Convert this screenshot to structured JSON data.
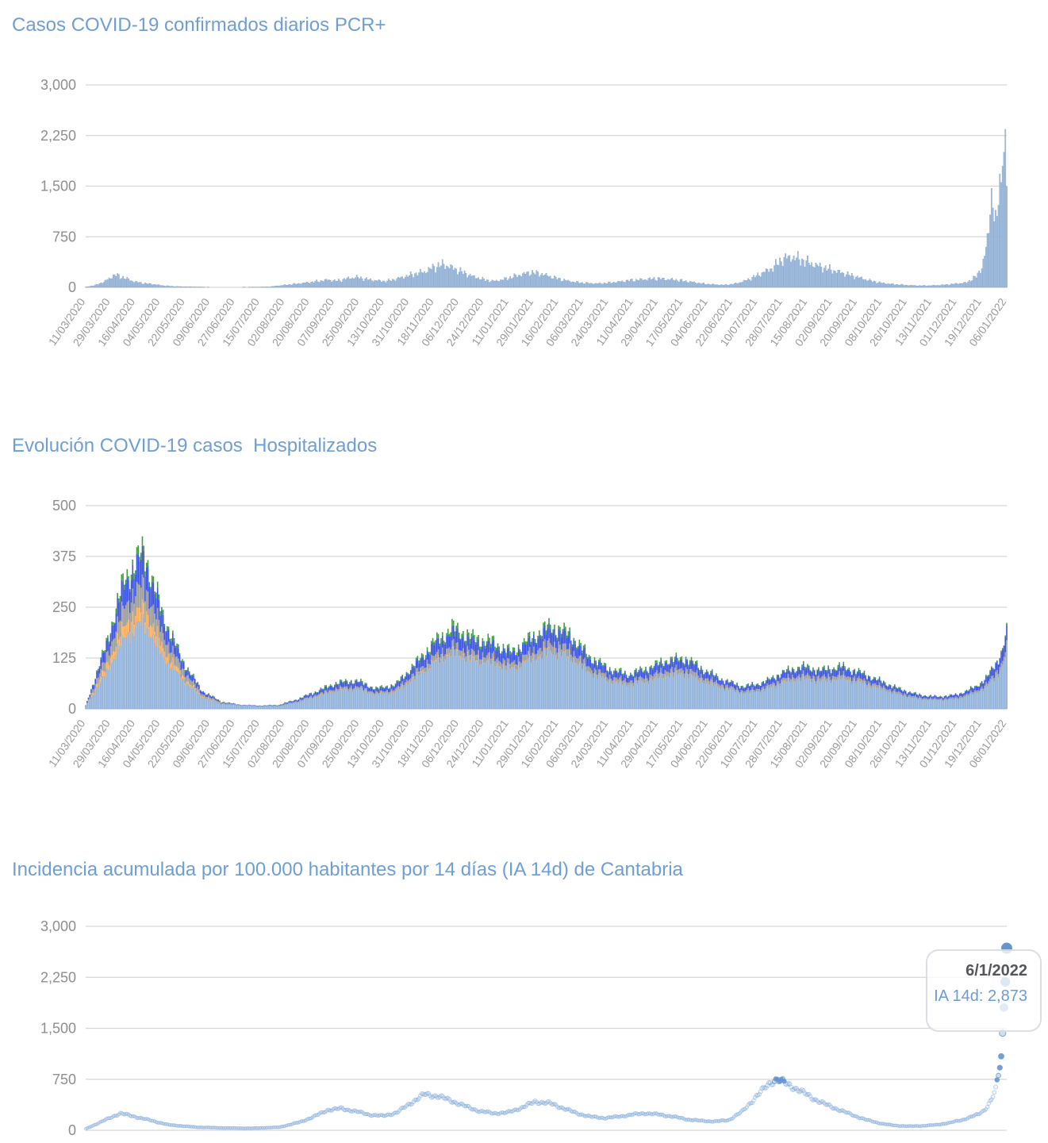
{
  "page": {
    "background": "#ffffff"
  },
  "colors": {
    "title_blue": "#6e9ed6",
    "grid_gray": "#d6d6d6",
    "y_label_gray": "#8e8e8e",
    "x_label_gray": "#9a9a9a",
    "bar_fill": "#a5bfdf",
    "bar_stroke": "#7fa2cb",
    "dot_blue": "#6d9bd3",
    "dot_dark": "#5e8fcb",
    "stack_lightblue": "#afc9e6",
    "stack_lightblue_stroke": "#6e94c9",
    "stack_orange": "#fbaf5d",
    "stack_gray": "#9d9d9d",
    "stack_blue": "#3b53e3",
    "stack_green": "#3ba13b"
  },
  "x_axis_dates": [
    "11/03/2020",
    "29/03/2020",
    "16/04/2020",
    "04/05/2020",
    "22/05/2020",
    "09/06/2020",
    "27/06/2020",
    "15/07/2020",
    "02/08/2020",
    "20/08/2020",
    "07/09/2020",
    "25/09/2020",
    "13/10/2020",
    "31/10/2020",
    "18/11/2020",
    "06/12/2020",
    "24/12/2020",
    "11/01/2021",
    "29/01/2021",
    "16/02/2021",
    "06/03/2021",
    "24/03/2021",
    "11/04/2021",
    "29/04/2021",
    "17/05/2021",
    "04/06/2021",
    "22/06/2021",
    "10/07/2021",
    "28/07/2021",
    "15/08/2021",
    "02/09/2021",
    "20/09/2021",
    "08/10/2021",
    "26/10/2021",
    "13/11/2021",
    "01/12/2021",
    "19/12/2021",
    "06/01/2022"
  ],
  "chart_data": [
    {
      "type": "bar",
      "title": "Casos COVID-19 confirmados diarios PCR+",
      "ylabel": "",
      "y_max": 3000,
      "y_ticks": [
        "3,000",
        "2,250",
        "1,500",
        "750",
        "0"
      ],
      "x_start_date": "11/03/2020",
      "x_end_date": "06/01/2022",
      "x_tick_interval_days": 18,
      "x_tick_labels": [
        "11/03/2020",
        "29/03/2020",
        "16/04/2020",
        "04/05/2020",
        "22/05/2020",
        "09/06/2020",
        "27/06/2020",
        "15/07/2020",
        "02/08/2020",
        "20/08/2020",
        "07/09/2020",
        "25/09/2020",
        "13/10/2020",
        "31/10/2020",
        "18/11/2020",
        "06/12/2020",
        "24/12/2020",
        "11/01/2021",
        "29/01/2021",
        "16/02/2021",
        "06/03/2021",
        "24/03/2021",
        "11/04/2021",
        "29/04/2021",
        "17/05/2021",
        "04/06/2021",
        "22/06/2021",
        "10/07/2021",
        "28/07/2021",
        "15/08/2021",
        "02/09/2021",
        "20/09/2021",
        "08/10/2021",
        "26/10/2021",
        "13/11/2021",
        "01/12/2021",
        "19/12/2021",
        "06/01/2022"
      ],
      "grid": true,
      "points_day_value": [
        [
          0,
          5
        ],
        [
          7,
          30
        ],
        [
          14,
          90
        ],
        [
          21,
          185
        ],
        [
          28,
          140
        ],
        [
          35,
          85
        ],
        [
          42,
          60
        ],
        [
          49,
          45
        ],
        [
          56,
          25
        ],
        [
          63,
          15
        ],
        [
          70,
          10
        ],
        [
          77,
          8
        ],
        [
          84,
          5
        ],
        [
          91,
          3
        ],
        [
          98,
          2
        ],
        [
          105,
          2
        ],
        [
          112,
          3
        ],
        [
          119,
          4
        ],
        [
          126,
          5
        ],
        [
          133,
          8
        ],
        [
          140,
          25
        ],
        [
          147,
          40
        ],
        [
          154,
          55
        ],
        [
          161,
          70
        ],
        [
          168,
          90
        ],
        [
          175,
          110
        ],
        [
          182,
          95
        ],
        [
          189,
          130
        ],
        [
          196,
          150
        ],
        [
          203,
          120
        ],
        [
          210,
          100
        ],
        [
          217,
          90
        ],
        [
          224,
          120
        ],
        [
          231,
          160
        ],
        [
          238,
          200
        ],
        [
          245,
          230
        ],
        [
          252,
          300
        ],
        [
          259,
          340
        ],
        [
          266,
          280
        ],
        [
          273,
          220
        ],
        [
          280,
          160
        ],
        [
          287,
          120
        ],
        [
          294,
          90
        ],
        [
          301,
          110
        ],
        [
          308,
          150
        ],
        [
          315,
          190
        ],
        [
          322,
          220
        ],
        [
          329,
          200
        ],
        [
          336,
          160
        ],
        [
          343,
          120
        ],
        [
          350,
          90
        ],
        [
          357,
          70
        ],
        [
          364,
          60
        ],
        [
          371,
          55
        ],
        [
          378,
          65
        ],
        [
          385,
          80
        ],
        [
          392,
          100
        ],
        [
          399,
          110
        ],
        [
          406,
          120
        ],
        [
          413,
          130
        ],
        [
          420,
          120
        ],
        [
          427,
          110
        ],
        [
          434,
          90
        ],
        [
          441,
          70
        ],
        [
          448,
          50
        ],
        [
          455,
          40
        ],
        [
          462,
          35
        ],
        [
          469,
          50
        ],
        [
          476,
          90
        ],
        [
          483,
          150
        ],
        [
          490,
          220
        ],
        [
          497,
          290
        ],
        [
          504,
          420
        ],
        [
          511,
          450
        ],
        [
          518,
          400
        ],
        [
          525,
          350
        ],
        [
          532,
          300
        ],
        [
          539,
          260
        ],
        [
          546,
          220
        ],
        [
          553,
          180
        ],
        [
          560,
          140
        ],
        [
          567,
          100
        ],
        [
          574,
          70
        ],
        [
          581,
          50
        ],
        [
          588,
          40
        ],
        [
          595,
          30
        ],
        [
          602,
          25
        ],
        [
          609,
          25
        ],
        [
          616,
          30
        ],
        [
          623,
          40
        ],
        [
          630,
          55
        ],
        [
          637,
          70
        ],
        [
          644,
          160
        ],
        [
          648,
          300
        ],
        [
          651,
          550
        ],
        [
          653,
          870
        ],
        [
          655,
          1420
        ],
        [
          657,
          1050
        ],
        [
          659,
          950
        ],
        [
          661,
          1700
        ],
        [
          662,
          1500
        ],
        [
          663,
          1900
        ],
        [
          665,
          2230
        ],
        [
          666,
          1450
        ]
      ]
    },
    {
      "type": "stacked-bar",
      "title": "Evolución COVID-19 casos  Hospitalizados",
      "y_max": 500,
      "y_ticks": [
        "500",
        "375",
        "250",
        "125",
        "0"
      ],
      "x_start_date": "11/03/2020",
      "x_end_date": "06/01/2022",
      "x_tick_interval_days": 18,
      "x_tick_labels": [
        "11/03/2020",
        "29/03/2020",
        "16/04/2020",
        "04/05/2020",
        "22/05/2020",
        "09/06/2020",
        "27/06/2020",
        "15/07/2020",
        "02/08/2020",
        "20/08/2020",
        "07/09/2020",
        "25/09/2020",
        "13/10/2020",
        "31/10/2020",
        "18/11/2020",
        "06/12/2020",
        "24/12/2020",
        "11/01/2021",
        "29/01/2021",
        "16/02/2021",
        "06/03/2021",
        "24/03/2021",
        "11/04/2021",
        "29/04/2021",
        "17/05/2021",
        "04/06/2021",
        "22/06/2021",
        "10/07/2021",
        "28/07/2021",
        "15/08/2021",
        "02/09/2021",
        "20/09/2021",
        "08/10/2021",
        "26/10/2021",
        "13/11/2021",
        "01/12/2021",
        "19/12/2021",
        "06/01/2022"
      ],
      "grid": true,
      "days": [
        0,
        14,
        28,
        42,
        56,
        70,
        84,
        98,
        112,
        126,
        140,
        154,
        168,
        182,
        196,
        210,
        224,
        238,
        252,
        266,
        280,
        294,
        308,
        322,
        336,
        350,
        364,
        378,
        392,
        406,
        420,
        434,
        448,
        462,
        476,
        490,
        504,
        518,
        532,
        546,
        560,
        574,
        588,
        602,
        616,
        630,
        644,
        652,
        658,
        662,
        666
      ],
      "series": [
        {
          "name": "serie-azul-claro",
          "color": "#afc9e6",
          "values": [
            6,
            83,
            176,
            215,
            127,
            72,
            28,
            13,
            8,
            6,
            7,
            18,
            32,
            45,
            49,
            35,
            42,
            76,
            113,
            138,
            120,
            114,
            97,
            121,
            142,
            128,
            90,
            70,
            59,
            69,
            83,
            87,
            66,
            50,
            40,
            47,
            65,
            75,
            68,
            75,
            65,
            50,
            36,
            25,
            22,
            25,
            40,
            57,
            79,
            100,
            137
          ]
        },
        {
          "name": "serie-naranja",
          "color": "#fbaf5d",
          "values": [
            0,
            14,
            29,
            35,
            21,
            8,
            3,
            0,
            0,
            0,
            0,
            0,
            1,
            1,
            1,
            1,
            1,
            2,
            3,
            3,
            3,
            2,
            2,
            2,
            2,
            2,
            1,
            1,
            1,
            1,
            1,
            1,
            1,
            1,
            0,
            0,
            1,
            1,
            1,
            1,
            1,
            1,
            0,
            0,
            0,
            0,
            0,
            0,
            0,
            1,
            1
          ]
        },
        {
          "name": "serie-gris",
          "color": "#9d9d9d",
          "values": [
            1,
            22,
            48,
            59,
            34,
            18,
            6,
            2,
            1,
            1,
            1,
            2,
            3,
            5,
            5,
            4,
            5,
            9,
            13,
            16,
            14,
            13,
            12,
            16,
            19,
            17,
            12,
            9,
            8,
            9,
            11,
            11,
            9,
            6,
            4,
            5,
            7,
            8,
            8,
            8,
            7,
            6,
            4,
            3,
            2,
            3,
            4,
            6,
            8,
            10,
            13
          ]
        },
        {
          "name": "serie-azul",
          "color": "#3b53e3",
          "values": [
            1,
            26,
            54,
            66,
            39,
            18,
            7,
            2,
            1,
            1,
            1,
            4,
            7,
            11,
            12,
            8,
            10,
            18,
            28,
            32,
            28,
            27,
            23,
            28,
            33,
            30,
            21,
            16,
            14,
            17,
            20,
            21,
            15,
            11,
            9,
            11,
            14,
            17,
            15,
            17,
            14,
            11,
            8,
            6,
            5,
            6,
            10,
            15,
            21,
            26,
            36
          ]
        },
        {
          "name": "serie-verde",
          "color": "#3ba13b",
          "values": [
            0,
            5,
            13,
            15,
            9,
            4,
            1,
            1,
            0,
            0,
            1,
            1,
            2,
            3,
            3,
            2,
            2,
            5,
            8,
            11,
            10,
            9,
            6,
            8,
            9,
            8,
            6,
            4,
            3,
            4,
            5,
            5,
            4,
            2,
            2,
            2,
            3,
            4,
            3,
            4,
            3,
            2,
            2,
            1,
            1,
            1,
            1,
            2,
            2,
            3,
            3
          ]
        }
      ]
    },
    {
      "type": "scatter",
      "title": "Incidencia acumulada por 100.000 habitantes por 14 días (IA 14d) de Cantabria",
      "y_max": 3000,
      "y_ticks": [
        "3,000",
        "2,250",
        "1,500",
        "750",
        "0"
      ],
      "x_start_date": "11/03/2020",
      "x_end_date": "06/01/2022",
      "grid": true,
      "points_day_value": [
        [
          0,
          20
        ],
        [
          14,
          150
        ],
        [
          25,
          250
        ],
        [
          40,
          180
        ],
        [
          60,
          80
        ],
        [
          80,
          45
        ],
        [
          100,
          35
        ],
        [
          120,
          30
        ],
        [
          140,
          45
        ],
        [
          155,
          120
        ],
        [
          165,
          200
        ],
        [
          175,
          300
        ],
        [
          185,
          320
        ],
        [
          195,
          280
        ],
        [
          205,
          230
        ],
        [
          215,
          210
        ],
        [
          225,
          260
        ],
        [
          235,
          400
        ],
        [
          245,
          530
        ],
        [
          255,
          500
        ],
        [
          265,
          430
        ],
        [
          275,
          350
        ],
        [
          285,
          280
        ],
        [
          295,
          250
        ],
        [
          305,
          260
        ],
        [
          315,
          330
        ],
        [
          325,
          420
        ],
        [
          335,
          400
        ],
        [
          345,
          330
        ],
        [
          355,
          250
        ],
        [
          365,
          200
        ],
        [
          375,
          180
        ],
        [
          385,
          200
        ],
        [
          395,
          230
        ],
        [
          405,
          250
        ],
        [
          415,
          230
        ],
        [
          425,
          200
        ],
        [
          435,
          160
        ],
        [
          445,
          140
        ],
        [
          455,
          130
        ],
        [
          465,
          150
        ],
        [
          475,
          280
        ],
        [
          485,
          500
        ],
        [
          495,
          700
        ],
        [
          500,
          750
        ],
        [
          505,
          700
        ],
        [
          515,
          600
        ],
        [
          525,
          480
        ],
        [
          535,
          380
        ],
        [
          545,
          300
        ],
        [
          555,
          220
        ],
        [
          565,
          150
        ],
        [
          575,
          100
        ],
        [
          585,
          70
        ],
        [
          595,
          60
        ],
        [
          605,
          65
        ],
        [
          615,
          80
        ],
        [
          625,
          110
        ],
        [
          635,
          160
        ],
        [
          645,
          230
        ],
        [
          650,
          300
        ],
        [
          655,
          450
        ],
        [
          658,
          600
        ],
        [
          660,
          800
        ],
        [
          662,
          1100
        ],
        [
          663,
          1400
        ],
        [
          664,
          1800
        ],
        [
          665,
          2300
        ],
        [
          666,
          2873
        ]
      ],
      "tooltip": {
        "date": "6/1/2022",
        "value_label": "IA 14d: 2,873",
        "value": 2873
      }
    }
  ]
}
